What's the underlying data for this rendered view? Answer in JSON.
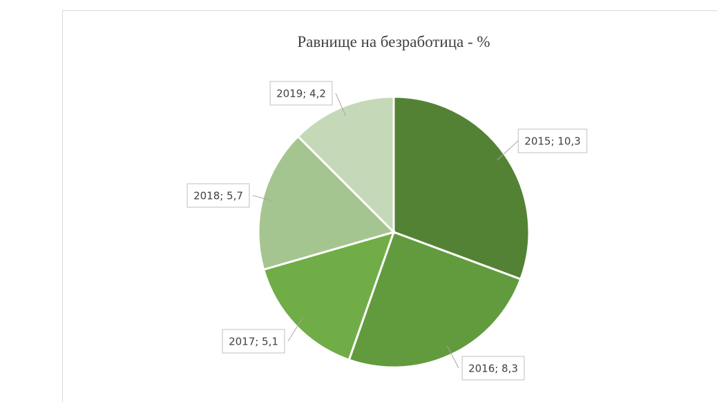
{
  "chart_data": {
    "type": "pie",
    "title": "Равнище на безработица - %",
    "values": [
      10.3,
      8.3,
      5.1,
      5.7,
      4.2
    ],
    "value_labels": [
      "2015; 10,3",
      "2016; 8,3",
      "2017; 5,1",
      "2018; 5,7",
      "2019; 4,2"
    ],
    "colors": [
      "#548235",
      "#629b3e",
      "#70ad47",
      "#a5c590",
      "#c5d9b8"
    ]
  }
}
